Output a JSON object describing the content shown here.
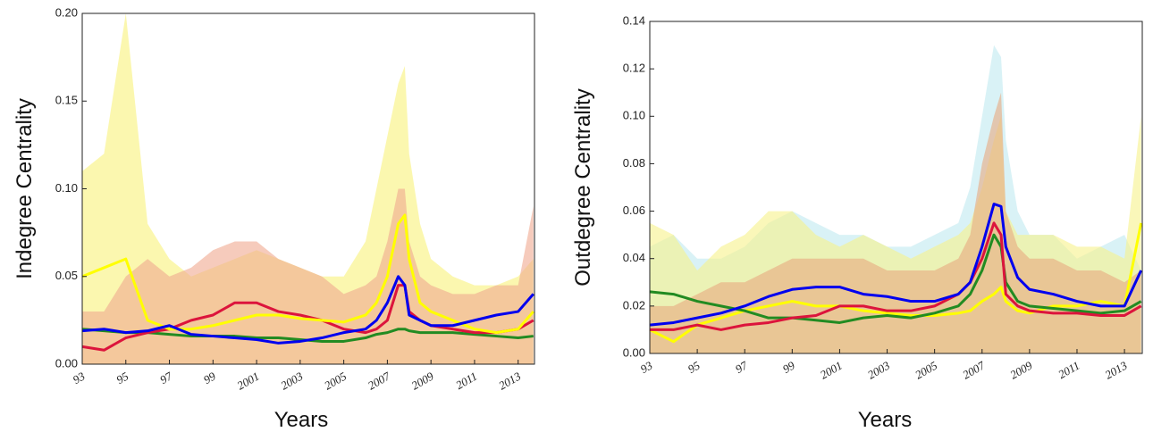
{
  "chart_data": [
    {
      "type": "line",
      "y_label": "Indegree Centrality",
      "x_label": "Years",
      "x": [
        1993,
        1994,
        1995,
        1996,
        1997,
        1998,
        1999,
        2000,
        2001,
        2002,
        2003,
        2004,
        2005,
        2006,
        2006.5,
        2007,
        2007.5,
        2007.8,
        2008,
        2008.5,
        2009,
        2010,
        2011,
        2012,
        2013,
        2013.7
      ],
      "xlim": [
        1993,
        2013.75
      ],
      "ylim": [
        0,
        0.2
      ],
      "xticks": [
        {
          "value": 1993,
          "label": "93"
        },
        {
          "value": 1995,
          "label": "95"
        },
        {
          "value": 1997,
          "label": "97"
        },
        {
          "value": 1999,
          "label": "99"
        },
        2001,
        2003,
        2005,
        2007,
        2009,
        2011,
        2013
      ],
      "yticks": [
        {
          "value": 0,
          "label": "0.00"
        },
        {
          "value": 0.05,
          "label": "0.05"
        },
        {
          "value": 0.1,
          "label": "0.10"
        },
        {
          "value": 0.15,
          "label": "0.15"
        },
        {
          "value": 0.2,
          "label": "0.20"
        }
      ],
      "series": [
        {
          "type": "area",
          "color": "#f8f27a",
          "values": [
            0.11,
            0.12,
            0.2,
            0.08,
            0.06,
            0.05,
            0.055,
            0.06,
            0.065,
            0.06,
            0.055,
            0.05,
            0.05,
            0.07,
            0.1,
            0.13,
            0.16,
            0.17,
            0.12,
            0.08,
            0.06,
            0.05,
            0.045,
            0.045,
            0.05,
            0.06
          ]
        },
        {
          "type": "area",
          "color": "#f0a890",
          "values": [
            0.03,
            0.03,
            0.05,
            0.06,
            0.05,
            0.055,
            0.065,
            0.07,
            0.07,
            0.06,
            0.055,
            0.05,
            0.04,
            0.045,
            0.05,
            0.07,
            0.1,
            0.1,
            0.07,
            0.05,
            0.045,
            0.04,
            0.04,
            0.045,
            0.045,
            0.09
          ]
        },
        {
          "type": "line",
          "color": "#228b22",
          "values": [
            0.02,
            0.019,
            0.018,
            0.018,
            0.017,
            0.016,
            0.016,
            0.016,
            0.015,
            0.015,
            0.014,
            0.013,
            0.013,
            0.015,
            0.017,
            0.018,
            0.02,
            0.02,
            0.019,
            0.018,
            0.018,
            0.018,
            0.017,
            0.016,
            0.015,
            0.016
          ]
        },
        {
          "type": "line",
          "color": "#dc143c",
          "values": [
            0.01,
            0.008,
            0.015,
            0.018,
            0.02,
            0.025,
            0.028,
            0.035,
            0.035,
            0.03,
            0.028,
            0.025,
            0.02,
            0.018,
            0.02,
            0.025,
            0.045,
            0.045,
            0.03,
            0.025,
            0.022,
            0.02,
            0.018,
            0.018,
            0.02,
            0.025
          ]
        },
        {
          "type": "line",
          "color": "#ffff00",
          "values": [
            0.05,
            0.055,
            0.06,
            0.025,
            0.02,
            0.02,
            0.022,
            0.025,
            0.028,
            0.028,
            0.026,
            0.025,
            0.024,
            0.028,
            0.035,
            0.05,
            0.08,
            0.085,
            0.06,
            0.035,
            0.03,
            0.025,
            0.02,
            0.018,
            0.02,
            0.03
          ]
        },
        {
          "type": "line",
          "color": "#0000ee",
          "values": [
            0.019,
            0.02,
            0.018,
            0.019,
            0.022,
            0.017,
            0.016,
            0.015,
            0.014,
            0.012,
            0.013,
            0.015,
            0.018,
            0.02,
            0.025,
            0.035,
            0.05,
            0.045,
            0.028,
            0.025,
            0.022,
            0.022,
            0.025,
            0.028,
            0.03,
            0.04
          ]
        }
      ]
    },
    {
      "type": "line",
      "y_label": "Outdegree Centrality",
      "x_label": "Years",
      "x": [
        1993,
        1994,
        1995,
        1996,
        1997,
        1998,
        1999,
        2000,
        2001,
        2002,
        2003,
        2004,
        2005,
        2006,
        2006.5,
        2007,
        2007.5,
        2007.8,
        2008,
        2008.5,
        2009,
        2010,
        2011,
        2012,
        2013,
        2013.7
      ],
      "xlim": [
        1993,
        2013.75
      ],
      "ylim": [
        0,
        0.14
      ],
      "xticks": [
        {
          "value": 1993,
          "label": "93"
        },
        {
          "value": 1995,
          "label": "95"
        },
        {
          "value": 1997,
          "label": "97"
        },
        {
          "value": 1999,
          "label": "99"
        },
        2001,
        2003,
        2005,
        2007,
        2009,
        2011,
        2013
      ],
      "yticks": [
        {
          "value": 0,
          "label": "0.00"
        },
        {
          "value": 0.02,
          "label": "0.02"
        },
        {
          "value": 0.04,
          "label": "0.04"
        },
        {
          "value": 0.06,
          "label": "0.06"
        },
        {
          "value": 0.08,
          "label": "0.08"
        },
        {
          "value": 0.1,
          "label": "0.10"
        },
        {
          "value": 0.12,
          "label": "0.12"
        },
        {
          "value": 0.14,
          "label": "0.14"
        }
      ],
      "series": [
        {
          "type": "area",
          "color": "#bfeaf0",
          "values": [
            0.045,
            0.05,
            0.04,
            0.04,
            0.045,
            0.055,
            0.06,
            0.055,
            0.05,
            0.05,
            0.045,
            0.045,
            0.05,
            0.055,
            0.07,
            0.1,
            0.13,
            0.125,
            0.09,
            0.06,
            0.05,
            0.05,
            0.04,
            0.045,
            0.05,
            0.035
          ]
        },
        {
          "type": "area",
          "color": "#f6f28a",
          "values": [
            0.055,
            0.05,
            0.035,
            0.045,
            0.05,
            0.06,
            0.06,
            0.05,
            0.045,
            0.05,
            0.045,
            0.04,
            0.045,
            0.05,
            0.055,
            0.07,
            0.09,
            0.1,
            0.06,
            0.05,
            0.05,
            0.05,
            0.045,
            0.045,
            0.04,
            0.1
          ]
        },
        {
          "type": "area",
          "color": "#e8a880",
          "values": [
            0.02,
            0.02,
            0.025,
            0.03,
            0.03,
            0.035,
            0.04,
            0.04,
            0.04,
            0.04,
            0.035,
            0.035,
            0.035,
            0.04,
            0.05,
            0.08,
            0.1,
            0.11,
            0.06,
            0.045,
            0.04,
            0.04,
            0.035,
            0.035,
            0.03,
            0.035
          ]
        },
        {
          "type": "line",
          "color": "#ffff00",
          "values": [
            0.01,
            0.005,
            0.012,
            0.015,
            0.018,
            0.02,
            0.022,
            0.02,
            0.02,
            0.018,
            0.017,
            0.016,
            0.016,
            0.017,
            0.018,
            0.022,
            0.025,
            0.028,
            0.022,
            0.018,
            0.017,
            0.02,
            0.02,
            0.022,
            0.02,
            0.055
          ]
        },
        {
          "type": "line",
          "color": "#228b22",
          "values": [
            0.026,
            0.025,
            0.022,
            0.02,
            0.018,
            0.015,
            0.015,
            0.014,
            0.013,
            0.015,
            0.016,
            0.015,
            0.017,
            0.02,
            0.025,
            0.035,
            0.05,
            0.045,
            0.03,
            0.022,
            0.02,
            0.019,
            0.018,
            0.017,
            0.018,
            0.022
          ]
        },
        {
          "type": "line",
          "color": "#dc143c",
          "values": [
            0.01,
            0.01,
            0.012,
            0.01,
            0.012,
            0.013,
            0.015,
            0.016,
            0.02,
            0.02,
            0.018,
            0.018,
            0.02,
            0.025,
            0.03,
            0.04,
            0.055,
            0.05,
            0.025,
            0.02,
            0.018,
            0.017,
            0.017,
            0.016,
            0.016,
            0.02
          ]
        },
        {
          "type": "line",
          "color": "#0000ee",
          "values": [
            0.012,
            0.013,
            0.015,
            0.017,
            0.02,
            0.024,
            0.027,
            0.028,
            0.028,
            0.025,
            0.024,
            0.022,
            0.022,
            0.025,
            0.03,
            0.045,
            0.063,
            0.062,
            0.045,
            0.032,
            0.027,
            0.025,
            0.022,
            0.02,
            0.02,
            0.035
          ]
        }
      ]
    }
  ]
}
